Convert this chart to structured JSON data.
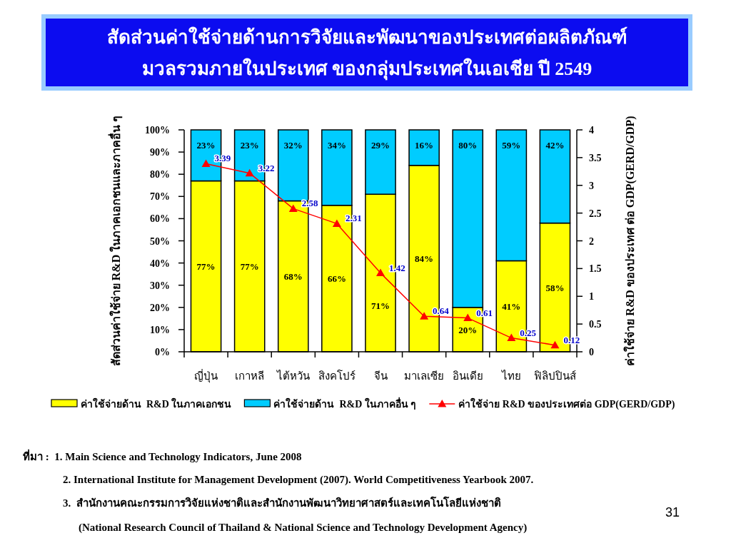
{
  "chart_data": {
    "type": "bar",
    "stacked": true,
    "title": "สัดส่วนค่าใช้จ่ายด้านการวิจัยและพัฒนาของประเทศต่อผลิตภัณฑ์\nมวลรวมภายในประเทศ ของกลุ่มประเทศในเอเชีย ปี 2549",
    "ylabel": "สัดส่วนค่าใช้จ่าย R&D ในภาคเอกชนและภาคอื่น ๆ",
    "y2label": "ค่าใช้จ่าย R&D ของประเทศ ต่อ GDP(GERD/GDP)",
    "categories": [
      "ญี่ปุ่น",
      "เกาหลี",
      "ไต้หวัน",
      "สิงคโปร์",
      "จีน",
      "มาเลเซีย",
      "อินเดีย",
      "ไทย",
      "ฟิลิปปินส์"
    ],
    "series": [
      {
        "name": "ค่าใช้จ่ายด้าน  R&D ในภาคเอกชน",
        "color": "#ffff00",
        "values": [
          77,
          77,
          68,
          66,
          71,
          84,
          20,
          41,
          58
        ],
        "value_labels": [
          "77%",
          "77%",
          "68%",
          "66%",
          "71%",
          "84%",
          "20%",
          "41%",
          "58%"
        ]
      },
      {
        "name": "ค่าใช้จ่ายด้าน  R&D ในภาคอื่น ๆ",
        "color": "#00ccff",
        "values": [
          23,
          23,
          32,
          34,
          29,
          16,
          80,
          59,
          42
        ],
        "value_labels": [
          "23%",
          "23%",
          "32%",
          "34%",
          "29%",
          "16%",
          "80%",
          "59%",
          "42%"
        ]
      },
      {
        "name": "ค่าใช้จ่าย R&D ของประเทศต่อ GDP(GERD/GDP)",
        "type": "line",
        "axis": "y2",
        "color": "#ff0000",
        "values": [
          3.39,
          3.22,
          2.58,
          2.31,
          1.42,
          0.64,
          0.61,
          0.25,
          0.12
        ],
        "value_labels": [
          "3.39",
          "3.22",
          "2.58",
          "2.31",
          "1.42",
          "0.64",
          "0.61",
          "0.25",
          "0.12"
        ]
      }
    ],
    "ylim": [
      0,
      100
    ],
    "yticks": [
      {
        "value": 0,
        "label": "0%"
      },
      {
        "value": 10,
        "label": "10%"
      },
      {
        "value": 20,
        "label": "20%"
      },
      {
        "value": 30,
        "label": "30%"
      },
      {
        "value": 40,
        "label": "40%"
      },
      {
        "value": 50,
        "label": "50%"
      },
      {
        "value": 60,
        "label": "60%"
      },
      {
        "value": 70,
        "label": "70%"
      },
      {
        "value": 80,
        "label": "80%"
      },
      {
        "value": 90,
        "label": "90%"
      },
      {
        "value": 100,
        "label": "100%"
      }
    ],
    "y2lim": [
      0,
      4
    ],
    "y2ticks": [
      0,
      0.5,
      1,
      1.5,
      2,
      2.5,
      3,
      3.5,
      4
    ],
    "legend": "bottom",
    "marker": "triangle",
    "line_style": "solid",
    "annotations": [
      "ที่มา :  1. Main Science and Technology Indicators, June 2008",
      "2. International Institute for Management Development (2007). World Competitiveness Yearbook 2007.",
      "3.  สำนักงานคณะกรรมการวิจัยแห่งชาติและสำนักงานพัฒนาวิทยาศาสตร์และเทคโนโลยีแห่งชาติ",
      "(National Research Council of Thailand & National Science and Technology Development Agency)",
      "31"
    ]
  }
}
